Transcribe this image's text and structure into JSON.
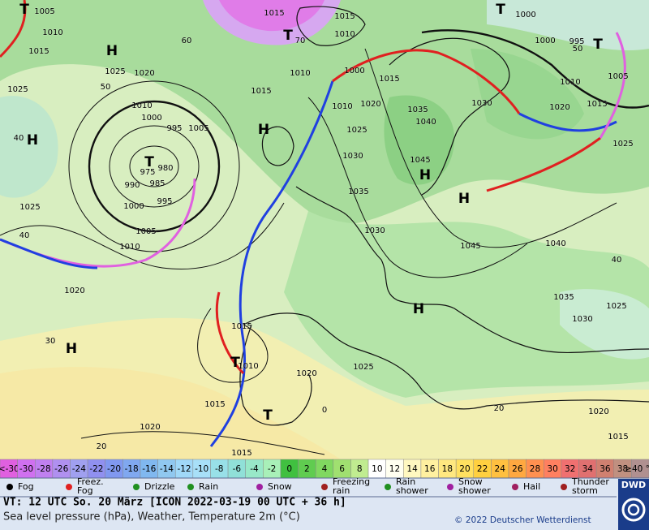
{
  "map": {
    "labels": [
      "1005",
      "1010",
      "1015",
      "1025",
      "1020",
      "1025",
      "1010",
      "1000",
      "995",
      "1005",
      "975",
      "980",
      "990",
      "985",
      "995",
      "1000",
      "1005",
      "1010",
      "1025",
      "1020",
      "1015",
      "1015",
      "1010",
      "1010",
      "1015",
      "1000",
      "1015",
      "1010",
      "1020",
      "1025",
      "1030",
      "1035",
      "1030",
      "1035",
      "1040",
      "1045",
      "1045",
      "1040",
      "1035",
      "1030",
      "1025",
      "1030",
      "1020",
      "1015",
      "1025",
      "1000",
      "1000",
      "995",
      "1010",
      "1005",
      "1015",
      "1010",
      "1020",
      "1025",
      "1015",
      "1020",
      "1015",
      "1020",
      "1015",
      "0",
      "20",
      "20",
      "30",
      "40",
      "40",
      "50",
      "60",
      "70",
      "40",
      "50"
    ],
    "highs": [
      "H",
      "H",
      "H",
      "H",
      "H",
      "H",
      "H"
    ],
    "lows": [
      "T",
      "T",
      "T",
      "T",
      "T",
      "T",
      "T"
    ]
  },
  "scale": {
    "labels": [
      "<-30",
      -30,
      -28,
      -26,
      -24,
      -22,
      -20,
      -18,
      -16,
      -14,
      -12,
      -10,
      -8,
      -6,
      -4,
      -2,
      0,
      2,
      4,
      6,
      8,
      10,
      12,
      14,
      16,
      18,
      20,
      22,
      24,
      26,
      28,
      30,
      32,
      34,
      36,
      38,
      "≥40 °C"
    ],
    "colors": [
      "#e060e0",
      "#d070f0",
      "#c080f0",
      "#b090f0",
      "#a0a0f0",
      "#9090f0",
      "#8098f0",
      "#80a8f0",
      "#80b8f0",
      "#90c8f0",
      "#a0d8f8",
      "#a8e0f8",
      "#98e0e8",
      "#90e0d8",
      "#98e8c8",
      "#a8f0b8",
      "#40c040",
      "#60cc50",
      "#80d860",
      "#a0e070",
      "#c0ec90",
      "#ffffff",
      "#fffff0",
      "#fff8c0",
      "#fff0a0",
      "#ffe880",
      "#ffe060",
      "#ffd040",
      "#ffc040",
      "#ffa840",
      "#ff9050",
      "#ff8060",
      "#f07070",
      "#e07070",
      "#d08070",
      "#c09080",
      "#b09090"
    ]
  },
  "legend": [
    "Fog",
    "Freez. Fog",
    "Drizzle",
    "Rain",
    "Snow",
    "Freezing rain",
    "Rain shower",
    "Snow shower",
    "Hail",
    "Thunder storm"
  ],
  "footer": {
    "valid": "VT: 12 UTC So.  20 März [ICON 2022-03-19  00 UTC + 36 h]",
    "description": "Sea level pressure (hPa), Weather, Temperature 2m (°C)",
    "copyright": "© 2022 Deutscher Wetterdienst",
    "logo": "DWD"
  }
}
